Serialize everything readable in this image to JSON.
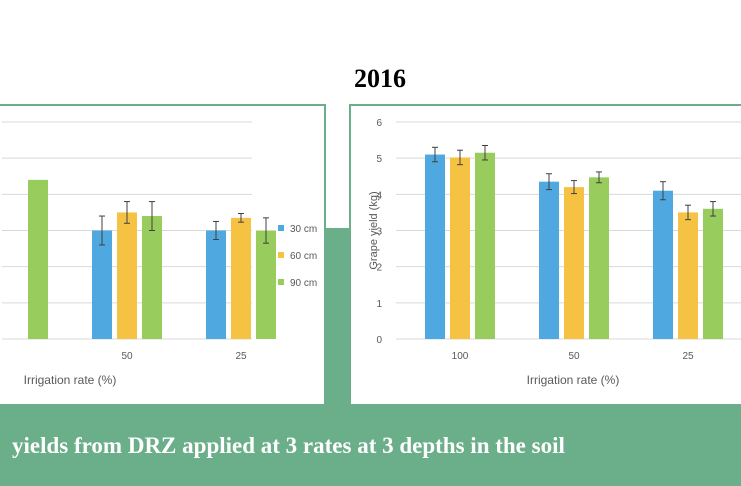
{
  "heading": "2016",
  "caption": "yields from DRZ applied at 3 rates at 3 depths in the soil",
  "colors": {
    "s30": "#4fa9e0",
    "s60": "#f6c244",
    "s90": "#98cc5c",
    "grid": "#d9d9d9",
    "frame": "#6bae8a"
  },
  "chart_data": [
    {
      "type": "bar",
      "xlabel": "Irrigation rate (%)",
      "categories": [
        "",
        "50",
        "25"
      ],
      "legend": [
        "30 cm",
        "60 cm",
        "90 cm"
      ],
      "legend_position": "right",
      "series": [
        {
          "name": "30 cm",
          "values": [
            null,
            3.0,
            3.0
          ],
          "errors": [
            null,
            0.4,
            0.25
          ]
        },
        {
          "name": "60 cm",
          "values": [
            null,
            3.5,
            3.35
          ],
          "errors": [
            null,
            0.3,
            0.12
          ]
        },
        {
          "name": "90 cm",
          "values": [
            4.4,
            3.4,
            3.0
          ],
          "errors": [
            null,
            0.4,
            0.35
          ]
        }
      ],
      "ylim": [
        0,
        6
      ],
      "grid": true
    },
    {
      "type": "bar",
      "xlabel": "Irrigation rate (%)",
      "ylabel": "Grape yield (kg)",
      "categories": [
        "100",
        "50",
        "25"
      ],
      "yticks": [
        "0",
        "1",
        "2",
        "3",
        "4",
        "5",
        "6"
      ],
      "series": [
        {
          "name": "30 cm",
          "values": [
            5.1,
            4.35,
            4.1
          ],
          "errors": [
            0.2,
            0.22,
            0.25
          ]
        },
        {
          "name": "60 cm",
          "values": [
            5.02,
            4.2,
            3.5
          ],
          "errors": [
            0.2,
            0.18,
            0.2
          ]
        },
        {
          "name": "90 cm",
          "values": [
            5.15,
            4.47,
            3.6
          ],
          "errors": [
            0.2,
            0.15,
            0.2
          ]
        }
      ],
      "ylim": [
        0,
        6
      ],
      "grid": true
    }
  ]
}
